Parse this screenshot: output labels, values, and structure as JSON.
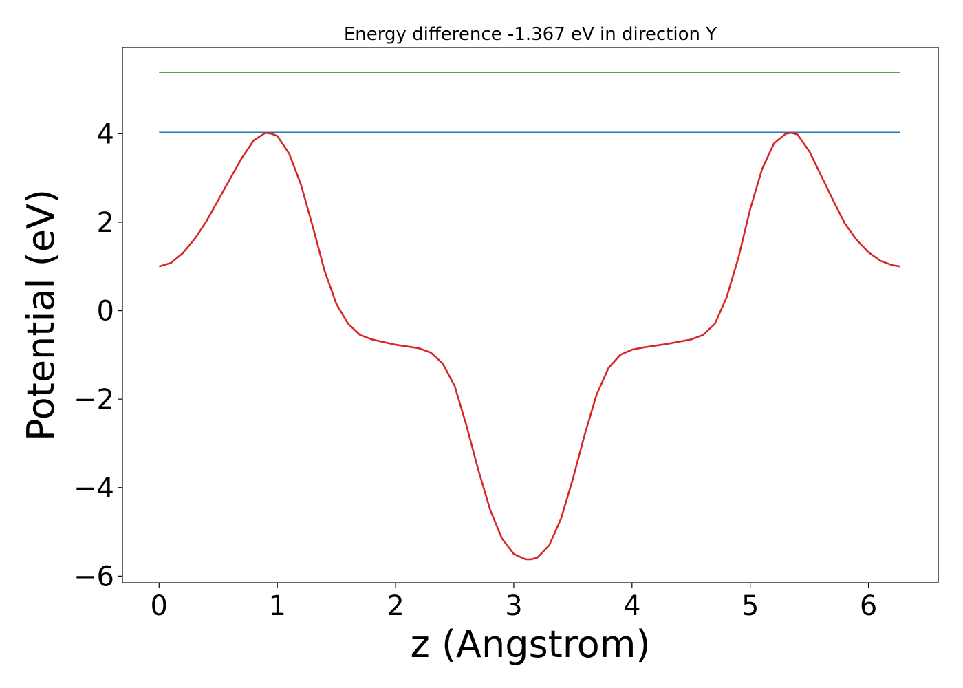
{
  "chart_data": {
    "type": "line",
    "title": "Energy difference -1.367 eV in direction Y",
    "xlabel": "z (Angstrom)",
    "ylabel": "Potential (eV)",
    "xlim": [
      -0.31,
      6.59
    ],
    "ylim": [
      -6.15,
      5.95
    ],
    "xticks": [
      0,
      1,
      2,
      3,
      4,
      5,
      6
    ],
    "xtick_labels": [
      "0",
      "1",
      "2",
      "3",
      "4",
      "5",
      "6"
    ],
    "yticks": [
      -6,
      -4,
      -2,
      0,
      2,
      4
    ],
    "ytick_labels": [
      "−6",
      "−4",
      "−2",
      "0",
      "2",
      "4"
    ],
    "grid": false,
    "series": [
      {
        "color": "#2ca02c",
        "x": [
          0,
          6.27
        ],
        "y": [
          5.39,
          5.39
        ]
      },
      {
        "color": "#1f77b4",
        "x": [
          0,
          6.27
        ],
        "y": [
          4.03,
          4.03
        ]
      },
      {
        "color": "#d62728",
        "x": [
          0,
          0.1,
          0.2,
          0.3,
          0.4,
          0.5,
          0.6,
          0.7,
          0.8,
          0.9,
          0.95,
          1.0,
          1.1,
          1.2,
          1.3,
          1.4,
          1.5,
          1.6,
          1.7,
          1.8,
          2.0,
          2.2,
          2.3,
          2.4,
          2.5,
          2.6,
          2.7,
          2.8,
          2.9,
          3.0,
          3.1,
          3.15,
          3.2,
          3.3,
          3.4,
          3.5,
          3.6,
          3.7,
          3.8,
          3.9,
          4.0,
          4.1,
          4.3,
          4.5,
          4.6,
          4.7,
          4.8,
          4.9,
          5.0,
          5.1,
          5.2,
          5.3,
          5.35,
          5.4,
          5.5,
          5.6,
          5.7,
          5.8,
          5.9,
          6.0,
          6.1,
          6.2,
          6.27
        ],
        "y": [
          1.0,
          1.08,
          1.3,
          1.62,
          2.02,
          2.5,
          2.98,
          3.45,
          3.85,
          4.02,
          4.0,
          3.95,
          3.55,
          2.85,
          1.9,
          0.9,
          0.15,
          -0.3,
          -0.55,
          -0.65,
          -0.77,
          -0.85,
          -0.95,
          -1.2,
          -1.7,
          -2.6,
          -3.6,
          -4.5,
          -5.15,
          -5.5,
          -5.62,
          -5.62,
          -5.58,
          -5.3,
          -4.7,
          -3.8,
          -2.8,
          -1.9,
          -1.3,
          -1.0,
          -0.88,
          -0.83,
          -0.75,
          -0.65,
          -0.55,
          -0.3,
          0.3,
          1.2,
          2.3,
          3.2,
          3.78,
          4.0,
          4.02,
          3.98,
          3.6,
          3.05,
          2.5,
          1.97,
          1.6,
          1.32,
          1.13,
          1.03,
          1.0
        ]
      }
    ]
  }
}
